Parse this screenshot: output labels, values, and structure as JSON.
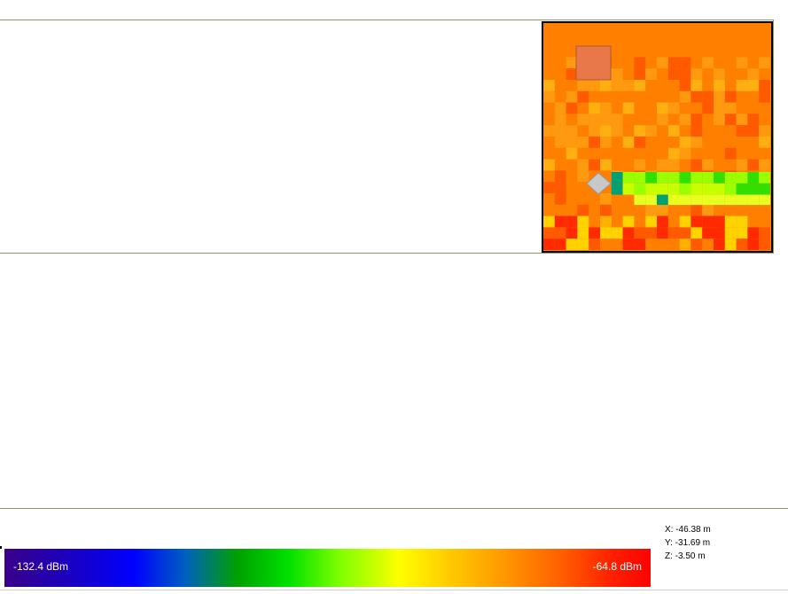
{
  "legend": {
    "min_label": "-132.4 dBm",
    "max_label": "-64.8 dBm"
  },
  "coordinates": {
    "x": "X: -46.38 m",
    "y": "Y: -31.69 m",
    "z": "Z: -3.50 m"
  },
  "colors": {
    "base": "#ff7f00",
    "accent_orange": "#ff9a10",
    "dark_orange": "#ff5a00",
    "red": "#ff2a00",
    "yellow": "#ffd200",
    "lime": "#9aff00",
    "green": "#31e000",
    "teal": "#00a070",
    "marker_square": "#e8784a",
    "marker_diamond": "#c8c8c8"
  }
}
